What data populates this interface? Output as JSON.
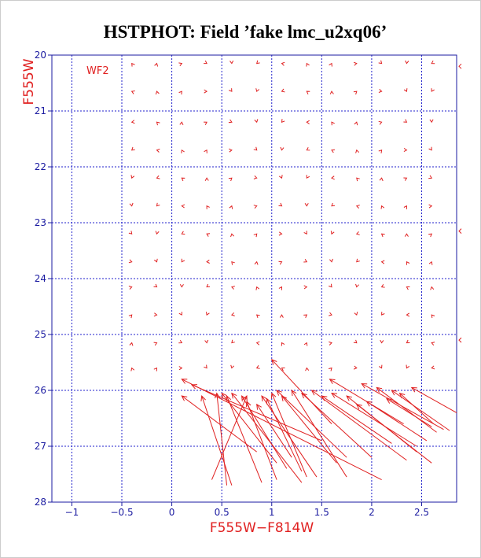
{
  "chart_data": {
    "type": "scatter",
    "title": "HSTPHOT: Field ’fake lmc_u2xq06’",
    "xlabel": "F555W−F814W",
    "ylabel": "F555W",
    "annotation": "WF2",
    "xlim": [
      -1.2,
      2.85
    ],
    "ylim": [
      28,
      20
    ],
    "y_inverted": true,
    "grid": true,
    "x_ticks": [
      -1,
      -0.5,
      0,
      0.5,
      1,
      1.5,
      2,
      2.5
    ],
    "x_tick_labels": [
      "−1",
      "−0.5",
      "0",
      "0.5",
      "1",
      "1.5",
      "2",
      "2.5"
    ],
    "y_ticks": [
      20,
      21,
      22,
      23,
      24,
      25,
      26,
      27,
      28
    ],
    "y_tick_labels": [
      "20",
      "21",
      "22",
      "23",
      "24",
      "25",
      "26",
      "27",
      "28"
    ],
    "colors": {
      "axes": "#1a1aa0",
      "grid": "#2222cc",
      "points": "#e02020",
      "title": "#000000"
    },
    "grid_colors": [
      -0.4,
      -0.15,
      0.1,
      0.35,
      0.6,
      0.85,
      1.1,
      1.35,
      1.6,
      1.85,
      2.1,
      2.35,
      2.6
    ],
    "grid_mags": [
      20.15,
      20.65,
      21.2,
      21.7,
      22.2,
      22.7,
      23.2,
      23.7,
      24.15,
      24.65,
      25.15,
      25.6
    ],
    "vectors": [
      {
        "x": 1.58,
        "y": 25.8,
        "x2": 2.32,
        "y2": 26.6
      },
      {
        "x": 1.9,
        "y": 25.88,
        "x2": 2.72,
        "y2": 26.7
      },
      {
        "x": 2.05,
        "y": 25.95,
        "x2": 2.65,
        "y2": 26.75
      },
      {
        "x": 2.2,
        "y": 26.0,
        "x2": 2.78,
        "y2": 26.72
      },
      {
        "x": 2.28,
        "y": 26.05,
        "x2": 2.62,
        "y2": 26.6
      },
      {
        "x": 2.4,
        "y": 25.95,
        "x2": 2.85,
        "y2": 26.4
      },
      {
        "x": 2.15,
        "y": 26.15,
        "x2": 2.6,
        "y2": 26.65
      },
      {
        "x": 1.75,
        "y": 26.1,
        "x2": 2.45,
        "y2": 27.1
      },
      {
        "x": 1.85,
        "y": 26.25,
        "x2": 2.6,
        "y2": 27.3
      },
      {
        "x": 1.95,
        "y": 26.2,
        "x2": 2.55,
        "y2": 26.9
      },
      {
        "x": 1.6,
        "y": 26.05,
        "x2": 2.45,
        "y2": 27.0
      },
      {
        "x": 1.4,
        "y": 26.0,
        "x2": 2.35,
        "y2": 27.25
      },
      {
        "x": 1.5,
        "y": 26.1,
        "x2": 2.2,
        "y2": 26.95
      },
      {
        "x": 1.3,
        "y": 26.05,
        "x2": 2.0,
        "y2": 27.2
      },
      {
        "x": 1.2,
        "y": 26.0,
        "x2": 1.75,
        "y2": 27.55
      },
      {
        "x": 1.0,
        "y": 25.45,
        "x2": 1.6,
        "y2": 26.6
      },
      {
        "x": 1.05,
        "y": 26.0,
        "x2": 1.75,
        "y2": 27.2
      },
      {
        "x": 0.9,
        "y": 26.1,
        "x2": 1.45,
        "y2": 27.55
      },
      {
        "x": 0.95,
        "y": 26.15,
        "x2": 1.3,
        "y2": 27.45
      },
      {
        "x": 0.85,
        "y": 26.25,
        "x2": 1.2,
        "y2": 27.2
      },
      {
        "x": 1.0,
        "y": 26.05,
        "x2": 1.35,
        "y2": 27.55
      },
      {
        "x": 1.1,
        "y": 26.1,
        "x2": 1.65,
        "y2": 27.3
      },
      {
        "x": 0.7,
        "y": 26.1,
        "x2": 1.15,
        "y2": 27.4
      },
      {
        "x": 0.75,
        "y": 26.2,
        "x2": 1.05,
        "y2": 27.6
      },
      {
        "x": 0.6,
        "y": 26.05,
        "x2": 1.3,
        "y2": 27.65
      },
      {
        "x": 0.5,
        "y": 26.05,
        "x2": 1.05,
        "y2": 27.3
      },
      {
        "x": 0.55,
        "y": 26.1,
        "x2": 0.9,
        "y2": 27.65
      },
      {
        "x": 0.45,
        "y": 26.05,
        "x2": 0.55,
        "y2": 27.7
      },
      {
        "x": 0.3,
        "y": 26.1,
        "x2": 0.6,
        "y2": 27.7
      },
      {
        "x": 0.75,
        "y": 26.1,
        "x2": 0.4,
        "y2": 27.6
      },
      {
        "x": 0.1,
        "y": 26.1,
        "x2": 0.85,
        "y2": 27.1
      },
      {
        "x": 0.1,
        "y": 25.8,
        "x2": 2.1,
        "y2": 27.6
      },
      {
        "x": 0.2,
        "y": 25.9,
        "x2": 1.5,
        "y2": 26.9
      }
    ]
  }
}
